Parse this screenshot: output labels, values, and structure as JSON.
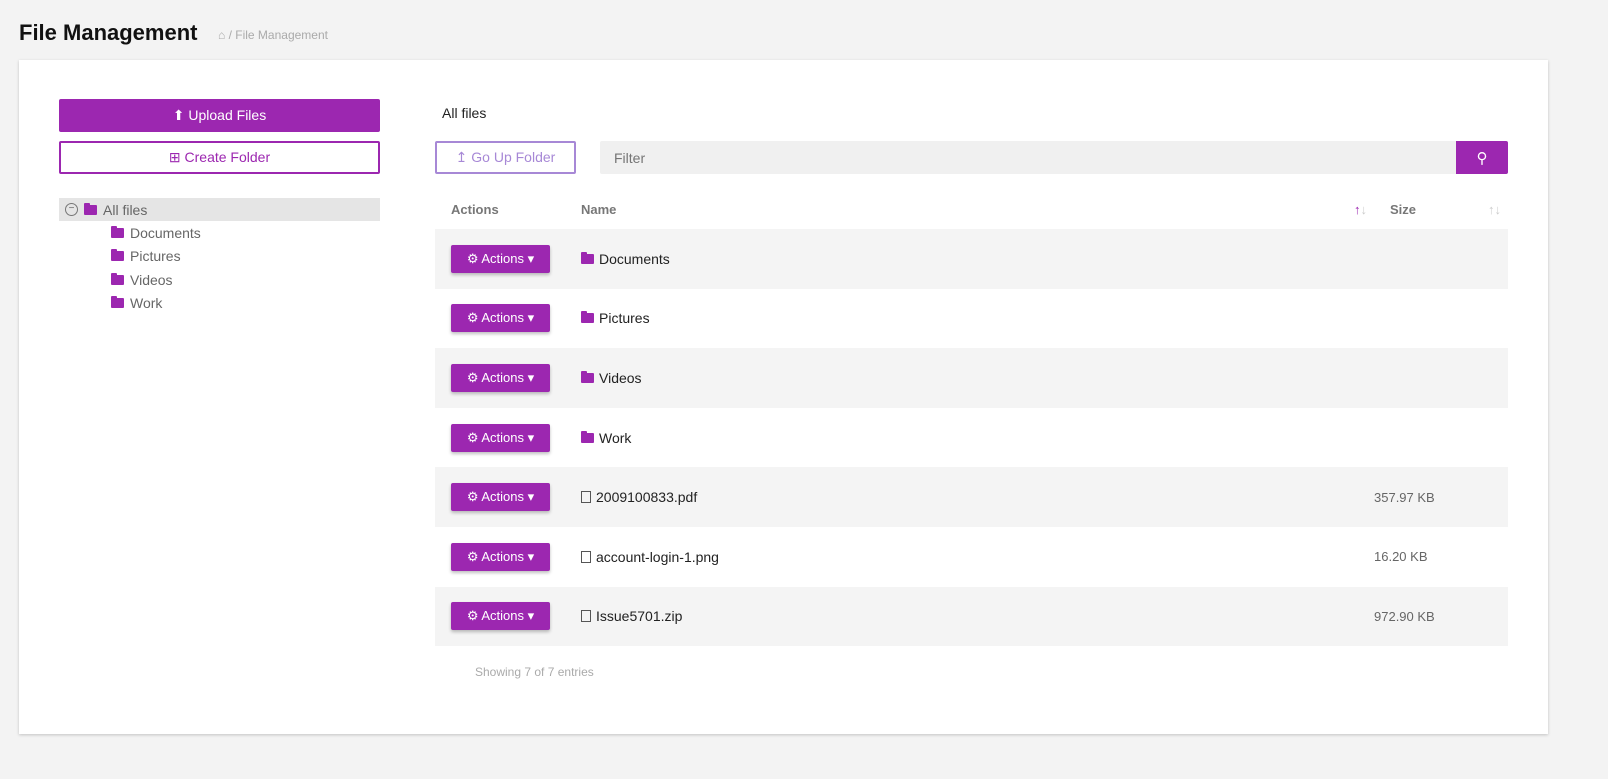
{
  "header": {
    "title": "File Management",
    "breadcrumb": "/ File Management"
  },
  "sidebar": {
    "upload_label": "Upload Files",
    "create_label": "Create Folder",
    "tree_root": "All files",
    "tree_children": [
      "Documents",
      "Pictures",
      "Videos",
      "Work"
    ]
  },
  "main": {
    "current_path": "All files",
    "go_up_label": "Go Up Folder",
    "filter_placeholder": "Filter",
    "columns": {
      "actions": "Actions",
      "name": "Name",
      "size": "Size"
    },
    "action_label": "Actions",
    "rows": [
      {
        "type": "folder",
        "name": "Documents",
        "size": ""
      },
      {
        "type": "folder",
        "name": "Pictures",
        "size": ""
      },
      {
        "type": "folder",
        "name": "Videos",
        "size": ""
      },
      {
        "type": "folder",
        "name": "Work",
        "size": ""
      },
      {
        "type": "file",
        "name": "2009100833.pdf",
        "size": "357.97 KB"
      },
      {
        "type": "file",
        "name": "account-login-1.png",
        "size": "16.20 KB"
      },
      {
        "type": "file",
        "name": "Issue5701.zip",
        "size": "972.90 KB"
      }
    ],
    "footer": "Showing 7 of 7 entries"
  },
  "colors": {
    "accent": "#9c27b0",
    "secondary": "#a788d6"
  }
}
